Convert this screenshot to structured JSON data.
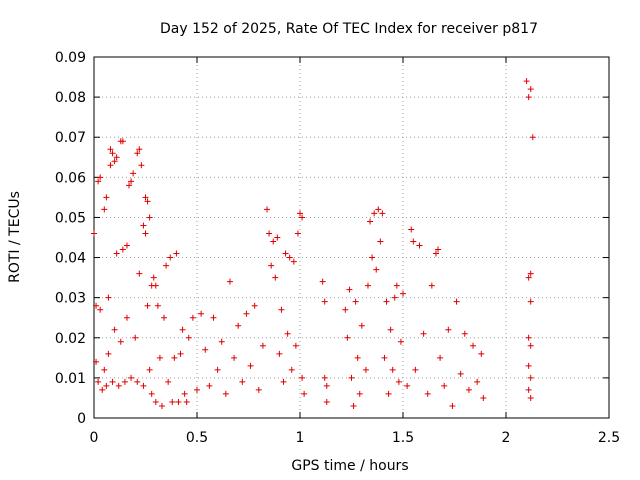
{
  "chart_data": {
    "type": "scatter",
    "title": "Day 152 of 2025, Rate Of TEC Index for receiver p817",
    "xlabel": "GPS time / hours",
    "ylabel": "ROTI / TECUs",
    "xlim": [
      0,
      2.5
    ],
    "ylim": [
      0,
      0.09
    ],
    "grid": true,
    "x_ticks": [
      0,
      0.5,
      1,
      1.5,
      2,
      2.5
    ],
    "x_tick_labels": [
      "0",
      "0.5",
      "1",
      "1.5",
      "2",
      "2.5"
    ],
    "y_ticks": [
      0,
      0.01,
      0.02,
      0.03,
      0.04,
      0.05,
      0.06,
      0.07,
      0.08,
      0.09
    ],
    "y_tick_labels": [
      "0",
      "0.01",
      "0.02",
      "0.03",
      "0.04",
      "0.05",
      "0.06",
      "0.07",
      "0.08",
      "0.09"
    ],
    "marker": "+",
    "color": "#e00000",
    "series": [
      {
        "name": "ROTI",
        "points": [
          [
            0.0,
            0.046
          ],
          [
            0.01,
            0.028
          ],
          [
            0.01,
            0.014
          ],
          [
            0.02,
            0.009
          ],
          [
            0.02,
            0.059
          ],
          [
            0.03,
            0.06
          ],
          [
            0.03,
            0.027
          ],
          [
            0.04,
            0.007
          ],
          [
            0.05,
            0.012
          ],
          [
            0.05,
            0.052
          ],
          [
            0.06,
            0.055
          ],
          [
            0.06,
            0.008
          ],
          [
            0.07,
            0.03
          ],
          [
            0.07,
            0.016
          ],
          [
            0.08,
            0.063
          ],
          [
            0.08,
            0.067
          ],
          [
            0.09,
            0.066
          ],
          [
            0.09,
            0.009
          ],
          [
            0.1,
            0.022
          ],
          [
            0.1,
            0.064
          ],
          [
            0.11,
            0.041
          ],
          [
            0.11,
            0.065
          ],
          [
            0.12,
            0.008
          ],
          [
            0.13,
            0.069
          ],
          [
            0.13,
            0.019
          ],
          [
            0.14,
            0.069
          ],
          [
            0.14,
            0.042
          ],
          [
            0.15,
            0.009
          ],
          [
            0.16,
            0.043
          ],
          [
            0.16,
            0.025
          ],
          [
            0.17,
            0.058
          ],
          [
            0.18,
            0.059
          ],
          [
            0.18,
            0.01
          ],
          [
            0.19,
            0.061
          ],
          [
            0.2,
            0.02
          ],
          [
            0.21,
            0.066
          ],
          [
            0.21,
            0.009
          ],
          [
            0.22,
            0.067
          ],
          [
            0.22,
            0.036
          ],
          [
            0.23,
            0.063
          ],
          [
            0.24,
            0.048
          ],
          [
            0.24,
            0.008
          ],
          [
            0.25,
            0.046
          ],
          [
            0.25,
            0.055
          ],
          [
            0.26,
            0.028
          ],
          [
            0.26,
            0.054
          ],
          [
            0.27,
            0.05
          ],
          [
            0.27,
            0.012
          ],
          [
            0.28,
            0.033
          ],
          [
            0.28,
            0.006
          ],
          [
            0.29,
            0.035
          ],
          [
            0.3,
            0.033
          ],
          [
            0.3,
            0.004
          ],
          [
            0.31,
            0.028
          ],
          [
            0.32,
            0.015
          ],
          [
            0.33,
            0.003
          ],
          [
            0.34,
            0.025
          ],
          [
            0.35,
            0.038
          ],
          [
            0.36,
            0.009
          ],
          [
            0.37,
            0.04
          ],
          [
            0.38,
            0.004
          ],
          [
            0.39,
            0.015
          ],
          [
            0.4,
            0.041
          ],
          [
            0.41,
            0.004
          ],
          [
            0.42,
            0.016
          ],
          [
            0.43,
            0.022
          ],
          [
            0.44,
            0.006
          ],
          [
            0.45,
            0.004
          ],
          [
            0.46,
            0.02
          ],
          [
            0.48,
            0.025
          ],
          [
            0.5,
            0.007
          ],
          [
            0.52,
            0.026
          ],
          [
            0.54,
            0.017
          ],
          [
            0.56,
            0.008
          ],
          [
            0.58,
            0.025
          ],
          [
            0.6,
            0.012
          ],
          [
            0.62,
            0.019
          ],
          [
            0.64,
            0.006
          ],
          [
            0.66,
            0.034
          ],
          [
            0.68,
            0.015
          ],
          [
            0.7,
            0.023
          ],
          [
            0.72,
            0.009
          ],
          [
            0.74,
            0.026
          ],
          [
            0.76,
            0.013
          ],
          [
            0.78,
            0.028
          ],
          [
            0.8,
            0.007
          ],
          [
            0.82,
            0.018
          ],
          [
            0.84,
            0.052
          ],
          [
            0.85,
            0.046
          ],
          [
            0.86,
            0.038
          ],
          [
            0.87,
            0.044
          ],
          [
            0.88,
            0.035
          ],
          [
            0.89,
            0.045
          ],
          [
            0.9,
            0.016
          ],
          [
            0.91,
            0.027
          ],
          [
            0.92,
            0.009
          ],
          [
            0.93,
            0.041
          ],
          [
            0.94,
            0.021
          ],
          [
            0.95,
            0.04
          ],
          [
            0.96,
            0.012
          ],
          [
            0.97,
            0.039
          ],
          [
            0.98,
            0.018
          ],
          [
            0.99,
            0.046
          ],
          [
            1.0,
            0.051
          ],
          [
            1.01,
            0.05
          ],
          [
            1.01,
            0.01
          ],
          [
            1.02,
            0.006
          ],
          [
            1.11,
            0.034
          ],
          [
            1.12,
            0.029
          ],
          [
            1.12,
            0.01
          ],
          [
            1.13,
            0.008
          ],
          [
            1.13,
            0.004
          ],
          [
            1.22,
            0.027
          ],
          [
            1.23,
            0.02
          ],
          [
            1.24,
            0.032
          ],
          [
            1.25,
            0.01
          ],
          [
            1.26,
            0.003
          ],
          [
            1.27,
            0.029
          ],
          [
            1.28,
            0.015
          ],
          [
            1.29,
            0.006
          ],
          [
            1.3,
            0.023
          ],
          [
            1.32,
            0.012
          ],
          [
            1.33,
            0.033
          ],
          [
            1.34,
            0.049
          ],
          [
            1.35,
            0.04
          ],
          [
            1.36,
            0.051
          ],
          [
            1.37,
            0.037
          ],
          [
            1.38,
            0.052
          ],
          [
            1.39,
            0.044
          ],
          [
            1.4,
            0.051
          ],
          [
            1.41,
            0.015
          ],
          [
            1.42,
            0.029
          ],
          [
            1.43,
            0.006
          ],
          [
            1.44,
            0.022
          ],
          [
            1.45,
            0.012
          ],
          [
            1.46,
            0.03
          ],
          [
            1.47,
            0.033
          ],
          [
            1.48,
            0.009
          ],
          [
            1.49,
            0.019
          ],
          [
            1.5,
            0.031
          ],
          [
            1.52,
            0.008
          ],
          [
            1.54,
            0.047
          ],
          [
            1.55,
            0.044
          ],
          [
            1.56,
            0.012
          ],
          [
            1.58,
            0.043
          ],
          [
            1.6,
            0.021
          ],
          [
            1.62,
            0.006
          ],
          [
            1.64,
            0.033
          ],
          [
            1.66,
            0.041
          ],
          [
            1.67,
            0.042
          ],
          [
            1.68,
            0.015
          ],
          [
            1.7,
            0.008
          ],
          [
            1.72,
            0.022
          ],
          [
            1.74,
            0.003
          ],
          [
            1.76,
            0.029
          ],
          [
            1.78,
            0.011
          ],
          [
            1.8,
            0.021
          ],
          [
            1.82,
            0.007
          ],
          [
            1.84,
            0.018
          ],
          [
            1.86,
            0.009
          ],
          [
            1.88,
            0.016
          ],
          [
            1.89,
            0.005
          ],
          [
            2.1,
            0.084
          ],
          [
            2.11,
            0.08
          ],
          [
            2.12,
            0.082
          ],
          [
            2.13,
            0.07
          ],
          [
            2.11,
            0.035
          ],
          [
            2.12,
            0.036
          ],
          [
            2.12,
            0.029
          ],
          [
            2.11,
            0.02
          ],
          [
            2.12,
            0.018
          ],
          [
            2.11,
            0.013
          ],
          [
            2.12,
            0.01
          ],
          [
            2.11,
            0.007
          ],
          [
            2.12,
            0.005
          ]
        ]
      }
    ]
  }
}
